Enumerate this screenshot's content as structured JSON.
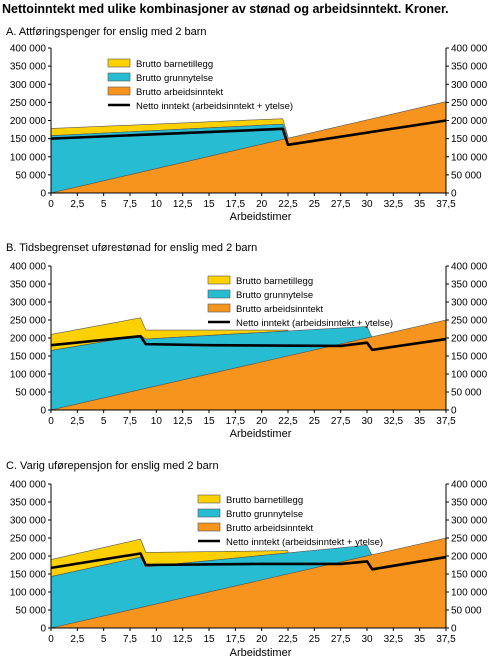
{
  "title": "Nettoinntekt med ulike kombinasjoner av stønad og arbeidsinntekt. Kroner.",
  "colors": {
    "barnetillegg": "#fdd000",
    "grunnytelse": "#27bcd2",
    "arbeidsinntekt": "#f7941d",
    "netto": "#000000",
    "outline": "#555555"
  },
  "chart_data": [
    {
      "type": "area",
      "title": "A.  Attføringspenger for enslig med 2 barn",
      "xlabel": "Arbeidstimer",
      "ylabel": "",
      "xlim": [
        0,
        37.5
      ],
      "ylim": [
        0,
        400000
      ],
      "x_ticks": [
        "0",
        "2,5",
        "5",
        "7,5",
        "10",
        "12,5",
        "15",
        "17,5",
        "20",
        "22,5",
        "25",
        "27,5",
        "30",
        "32,5",
        "35",
        "37,5"
      ],
      "y_ticks": [
        "0",
        "50 000",
        "100 000",
        "150 000",
        "200 000",
        "250 000",
        "300 000",
        "350 000",
        "400 000"
      ],
      "legend": [
        "Brutto barnetillegg",
        "Brutto grunnytelse",
        "Brutto arbeidsinntekt",
        "Netto inntekt (arbeidsinntekt + ytelse)"
      ],
      "series": [
        {
          "name": "Brutto barnetillegg",
          "x": [
            0,
            22,
            22.5
          ],
          "y": [
            178000,
            205000,
            155000
          ]
        },
        {
          "name": "Brutto grunnytelse",
          "x": [
            0,
            22,
            22.5
          ],
          "y": [
            158000,
            190000,
            155000
          ]
        },
        {
          "name": "Brutto arbeidsinntekt",
          "x": [
            0,
            37.5
          ],
          "y": [
            0,
            252000
          ]
        },
        {
          "name": "Netto inntekt (arbeidsinntekt + ytelse)",
          "x": [
            0,
            22,
            22.5,
            37.5
          ],
          "y": [
            150000,
            177000,
            133000,
            200000
          ]
        }
      ]
    },
    {
      "type": "area",
      "title": "B.  Tidsbegrenset uførestønad for enslig med 2 barn",
      "xlabel": "Arbeidstimer",
      "ylabel": "",
      "xlim": [
        0,
        37.5
      ],
      "ylim": [
        0,
        400000
      ],
      "x_ticks": [
        "0",
        "2,5",
        "5",
        "7,5",
        "10",
        "12,5",
        "15",
        "17,5",
        "20",
        "22,5",
        "25",
        "27,5",
        "30",
        "32,5",
        "35",
        "37,5"
      ],
      "y_ticks": [
        "0",
        "50 000",
        "100 000",
        "150 000",
        "200 000",
        "250 000",
        "300 000",
        "350 000",
        "400 000"
      ],
      "legend": [
        "Brutto barnetillegg",
        "Brutto grunnytelse",
        "Brutto arbeidsinntekt",
        "Netto inntekt (arbeidsinntekt + ytelse)"
      ],
      "series": [
        {
          "name": "Brutto barnetillegg",
          "x": [
            0,
            8.5,
            9,
            22.5
          ],
          "y": [
            210000,
            256000,
            222000,
            222000
          ]
        },
        {
          "name": "Brutto grunnytelse",
          "x": [
            0,
            8.5,
            9,
            30,
            30.5
          ],
          "y": [
            165000,
            207000,
            197000,
            232000,
            200000
          ]
        },
        {
          "name": "Brutto arbeidsinntekt",
          "x": [
            0,
            37.5
          ],
          "y": [
            0,
            250000
          ]
        },
        {
          "name": "Netto inntekt (arbeidsinntekt + ytelse)",
          "x": [
            0,
            8.5,
            9,
            15,
            27.5,
            30,
            30.5,
            37.5
          ],
          "y": [
            180000,
            205000,
            183000,
            180000,
            178000,
            187000,
            167000,
            197000
          ]
        }
      ]
    },
    {
      "type": "area",
      "title": "C.  Varig uførepensjon for enslig med 2 barn",
      "xlabel": "Arbeidstimer",
      "ylabel": "",
      "xlim": [
        0,
        37.5
      ],
      "ylim": [
        0,
        400000
      ],
      "x_ticks": [
        "0",
        "2,5",
        "5",
        "7,5",
        "10",
        "12,5",
        "15",
        "17,5",
        "20",
        "22,5",
        "25",
        "27,5",
        "30",
        "32,5",
        "35",
        "37,5"
      ],
      "y_ticks": [
        "0",
        "50 000",
        "100 000",
        "150 000",
        "200 000",
        "250 000",
        "300 000",
        "350 000",
        "400 000"
      ],
      "legend": [
        "Brutto barnetillegg",
        "Brutto grunnytelse",
        "Brutto arbeidsinntekt",
        "Netto inntekt (arbeidsinntekt + ytelse)"
      ],
      "series": [
        {
          "name": "Brutto barnetillegg",
          "x": [
            0,
            8.5,
            9,
            22.5
          ],
          "y": [
            190000,
            247000,
            210000,
            215000
          ]
        },
        {
          "name": "Brutto grunnytelse",
          "x": [
            0,
            8.5,
            9,
            30,
            30.5
          ],
          "y": [
            143000,
            197000,
            170000,
            230000,
            200000
          ]
        },
        {
          "name": "Brutto arbeidsinntekt",
          "x": [
            0,
            37.5
          ],
          "y": [
            0,
            250000
          ]
        },
        {
          "name": "Netto inntekt (arbeidsinntekt + ytelse)",
          "x": [
            0,
            8.5,
            9,
            20,
            27.5,
            30,
            30.5,
            37.5
          ],
          "y": [
            167000,
            207000,
            175000,
            178000,
            178000,
            185000,
            163000,
            197000
          ]
        }
      ]
    }
  ]
}
